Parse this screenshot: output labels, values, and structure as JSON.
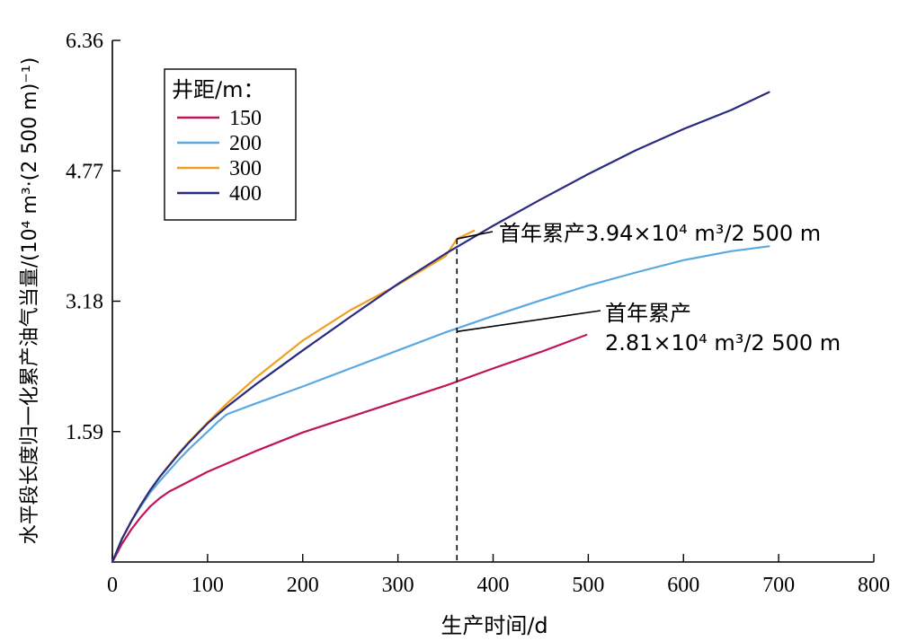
{
  "chart_data": {
    "type": "line",
    "title": "",
    "xlabel": "生产时间/d",
    "ylabel": "水平段长度归一化累产油气当量/(10⁴ m³·(2 500 m)⁻¹)",
    "xlim": [
      0,
      800
    ],
    "ylim": [
      0,
      6.36
    ],
    "xticks": [
      0,
      100,
      200,
      300,
      400,
      500,
      600,
      700,
      800
    ],
    "yticks": [
      1.59,
      3.18,
      4.77,
      6.36
    ],
    "grid": false,
    "legend": {
      "title": "井距/m：",
      "placement": "top-left",
      "entries": [
        "150",
        "200",
        "300",
        "400"
      ]
    },
    "series": [
      {
        "name": "150",
        "color": "#c0145a",
        "x": [
          0,
          10,
          20,
          30,
          40,
          50,
          60,
          70,
          80,
          100,
          120,
          150,
          200,
          250,
          300,
          350,
          400,
          450,
          498
        ],
        "y": [
          0,
          0.22,
          0.4,
          0.55,
          0.68,
          0.78,
          0.86,
          0.92,
          0.98,
          1.1,
          1.2,
          1.35,
          1.58,
          1.77,
          1.96,
          2.15,
          2.36,
          2.56,
          2.77
        ]
      },
      {
        "name": "200",
        "color": "#5aa8e0",
        "x": [
          0,
          10,
          20,
          30,
          40,
          50,
          60,
          70,
          80,
          90,
          100,
          110,
          120,
          150,
          200,
          250,
          300,
          350,
          400,
          450,
          500,
          550,
          600,
          650,
          690
        ],
        "y": [
          0,
          0.28,
          0.5,
          0.68,
          0.85,
          0.99,
          1.12,
          1.25,
          1.37,
          1.48,
          1.59,
          1.7,
          1.8,
          1.93,
          2.14,
          2.36,
          2.58,
          2.8,
          3.0,
          3.19,
          3.37,
          3.53,
          3.68,
          3.79,
          3.85
        ]
      },
      {
        "name": "300",
        "color": "#f0a020",
        "x": [
          0,
          10,
          20,
          30,
          40,
          50,
          60,
          70,
          80,
          100,
          120,
          150,
          200,
          250,
          300,
          350,
          362,
          380
        ],
        "y": [
          0,
          0.28,
          0.5,
          0.7,
          0.88,
          1.04,
          1.19,
          1.33,
          1.46,
          1.7,
          1.93,
          2.24,
          2.7,
          3.07,
          3.38,
          3.73,
          3.94,
          4.04
        ]
      },
      {
        "name": "400",
        "color": "#2a2a80",
        "x": [
          0,
          10,
          20,
          30,
          40,
          50,
          60,
          70,
          80,
          100,
          120,
          150,
          200,
          250,
          300,
          350,
          400,
          450,
          500,
          550,
          600,
          650,
          690
        ],
        "y": [
          0,
          0.28,
          0.5,
          0.7,
          0.88,
          1.04,
          1.18,
          1.32,
          1.45,
          1.69,
          1.89,
          2.16,
          2.58,
          2.99,
          3.39,
          3.76,
          4.1,
          4.42,
          4.73,
          5.02,
          5.28,
          5.51,
          5.73
        ]
      }
    ],
    "reference_line": {
      "x": 362,
      "style": "dashed"
    },
    "annotations": [
      {
        "text": "首年累产3.94×10⁴ m³/2 500 m",
        "lines": [
          "首年累产3.94×10⁴ m³/2 500 m"
        ],
        "point": [
          362,
          3.94
        ]
      },
      {
        "text": "首年累产 2.81×10⁴ m³/2 500 m",
        "lines": [
          "首年累产",
          "2.81×10⁴ m³/2 500 m"
        ],
        "point": [
          362,
          2.81
        ]
      }
    ]
  }
}
